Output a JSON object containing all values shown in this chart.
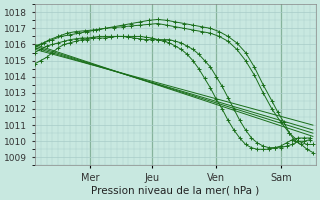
{
  "title": "",
  "xlabel": "Pression niveau de la mer( hPa )",
  "ylim": [
    1008.5,
    1018.5
  ],
  "yticks": [
    1009,
    1010,
    1011,
    1012,
    1013,
    1014,
    1015,
    1016,
    1017,
    1018
  ],
  "day_labels": [
    "Mer",
    "Jeu",
    "Ven",
    "Sam"
  ],
  "bg_color": "#c8e8e0",
  "grid_color": "#a8ccc8",
  "line_color": "#1a6e1a",
  "xlim": [
    0,
    4.8
  ],
  "day_positions": [
    0.95,
    2.0,
    3.1,
    4.2
  ],
  "figsize": [
    3.2,
    2.0
  ],
  "dpi": 100,
  "curved_lines": [
    [
      0.0,
      1015.8,
      0.1,
      1016.0,
      0.25,
      1016.3,
      0.4,
      1016.5,
      0.55,
      1016.7,
      0.7,
      1016.8,
      0.85,
      1016.85,
      1.0,
      1016.9,
      1.1,
      1016.95,
      1.2,
      1017.0,
      1.35,
      1017.1,
      1.5,
      1017.2,
      1.65,
      1017.3,
      1.8,
      1017.4,
      1.95,
      1017.5,
      2.1,
      1017.55,
      2.25,
      1017.5,
      2.4,
      1017.4,
      2.55,
      1017.3,
      2.7,
      1017.2,
      2.85,
      1017.1,
      3.0,
      1017.0,
      3.15,
      1016.8,
      3.3,
      1016.5,
      3.45,
      1016.1,
      3.6,
      1015.5,
      3.75,
      1014.6,
      3.9,
      1013.5,
      4.05,
      1012.5,
      4.15,
      1011.8,
      4.25,
      1011.2,
      4.35,
      1010.5,
      4.45,
      1010.0,
      4.55,
      1009.8,
      4.65,
      1009.5,
      4.75,
      1009.3
    ],
    [
      0.0,
      1015.9,
      0.15,
      1016.1,
      0.3,
      1016.3,
      0.45,
      1016.5,
      0.6,
      1016.6,
      0.75,
      1016.7,
      0.9,
      1016.8,
      1.05,
      1016.9,
      1.2,
      1017.0,
      1.35,
      1017.05,
      1.5,
      1017.1,
      1.65,
      1017.15,
      1.8,
      1017.2,
      1.95,
      1017.25,
      2.1,
      1017.3,
      2.25,
      1017.2,
      2.4,
      1017.1,
      2.55,
      1017.0,
      2.7,
      1016.9,
      2.85,
      1016.8,
      3.0,
      1016.7,
      3.15,
      1016.5,
      3.3,
      1016.2,
      3.45,
      1015.7,
      3.6,
      1015.0,
      3.75,
      1014.1,
      3.9,
      1013.0,
      4.05,
      1012.0,
      4.2,
      1011.2,
      4.35,
      1010.5,
      4.5,
      1010.0,
      4.65,
      1009.8,
      4.75,
      1009.8
    ],
    [
      0.0,
      1015.5,
      0.1,
      1015.7,
      0.2,
      1015.9,
      0.3,
      1016.0,
      0.4,
      1016.1,
      0.5,
      1016.2,
      0.6,
      1016.3,
      0.7,
      1016.35,
      0.8,
      1016.4,
      0.9,
      1016.4,
      1.0,
      1016.45,
      1.1,
      1016.5,
      1.2,
      1016.5,
      1.3,
      1016.5,
      1.4,
      1016.5,
      1.5,
      1016.5,
      1.6,
      1016.45,
      1.7,
      1016.4,
      1.8,
      1016.35,
      1.9,
      1016.3,
      2.0,
      1016.3,
      2.1,
      1016.3,
      2.2,
      1016.3,
      2.3,
      1016.3,
      2.4,
      1016.2,
      2.5,
      1016.1,
      2.6,
      1015.9,
      2.7,
      1015.7,
      2.8,
      1015.4,
      2.9,
      1015.0,
      3.0,
      1014.6,
      3.1,
      1014.0,
      3.2,
      1013.4,
      3.3,
      1012.7,
      3.4,
      1012.0,
      3.5,
      1011.3,
      3.6,
      1010.7,
      3.7,
      1010.2,
      3.8,
      1009.9,
      3.9,
      1009.7,
      4.0,
      1009.6,
      4.1,
      1009.6,
      4.2,
      1009.6,
      4.3,
      1009.7,
      4.4,
      1009.8,
      4.5,
      1010.0,
      4.6,
      1010.0,
      4.7,
      1010.1
    ],
    [
      0.0,
      1014.8,
      0.1,
      1015.0,
      0.2,
      1015.2,
      0.3,
      1015.5,
      0.4,
      1015.8,
      0.5,
      1016.0,
      0.6,
      1016.1,
      0.7,
      1016.2,
      0.8,
      1016.3,
      0.9,
      1016.3,
      1.0,
      1016.4,
      1.1,
      1016.4,
      1.2,
      1016.4,
      1.3,
      1016.45,
      1.4,
      1016.5,
      1.5,
      1016.5,
      1.6,
      1016.5,
      1.7,
      1016.5,
      1.8,
      1016.5,
      1.9,
      1016.45,
      2.0,
      1016.4,
      2.1,
      1016.3,
      2.2,
      1016.2,
      2.3,
      1016.1,
      2.4,
      1015.9,
      2.5,
      1015.7,
      2.6,
      1015.4,
      2.7,
      1015.0,
      2.8,
      1014.5,
      2.9,
      1013.9,
      3.0,
      1013.3,
      3.1,
      1012.6,
      3.2,
      1012.0,
      3.3,
      1011.3,
      3.4,
      1010.7,
      3.5,
      1010.2,
      3.6,
      1009.8,
      3.7,
      1009.6,
      3.8,
      1009.5,
      3.9,
      1009.5,
      4.0,
      1009.5,
      4.1,
      1009.6,
      4.2,
      1009.7,
      4.3,
      1009.9,
      4.4,
      1010.1,
      4.5,
      1010.2,
      4.6,
      1010.2,
      4.7,
      1010.2
    ]
  ],
  "straight_lines": [
    [
      [
        0.0,
        1016.0
      ],
      [
        4.75,
        1010.3
      ]
    ],
    [
      [
        0.0,
        1015.9
      ],
      [
        4.75,
        1010.5
      ]
    ],
    [
      [
        0.0,
        1015.8
      ],
      [
        4.75,
        1010.7
      ]
    ],
    [
      [
        0.0,
        1015.7
      ],
      [
        4.75,
        1011.0
      ]
    ]
  ]
}
